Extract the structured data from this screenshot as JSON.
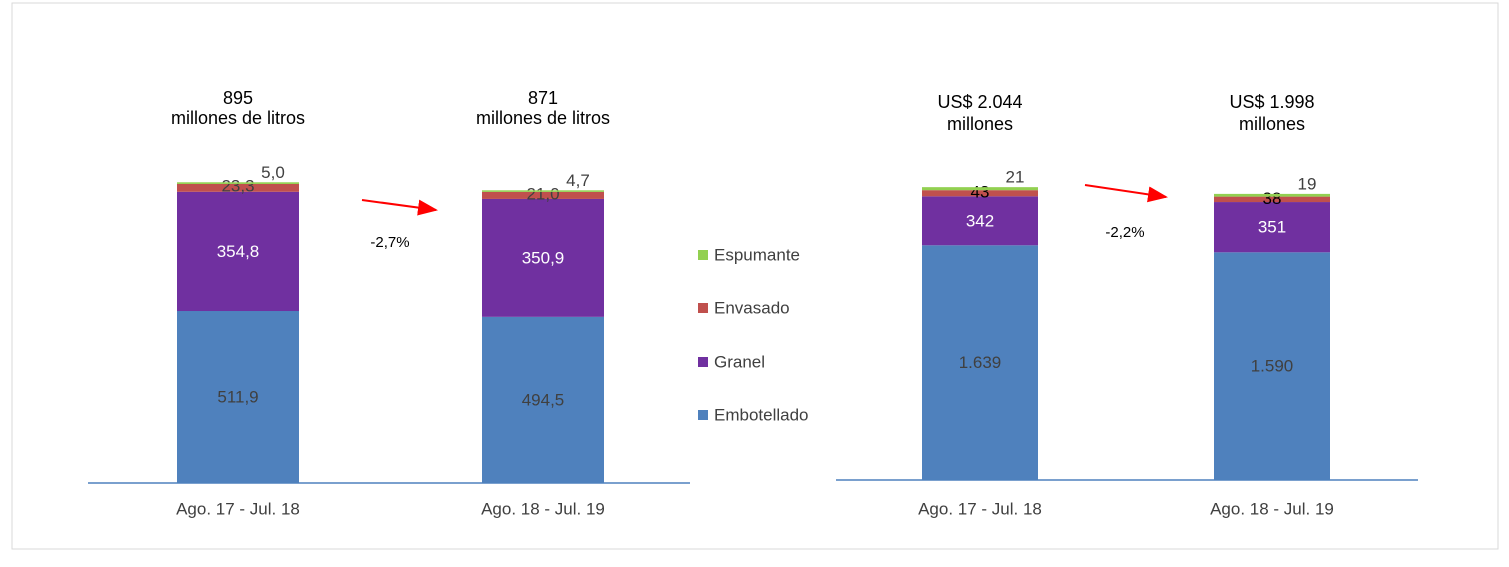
{
  "chart_data": [
    {
      "type": "stacked_bar",
      "categories": [
        "Ago. 17 - Jul. 18",
        "Ago. 18 - Jul. 19"
      ],
      "total_labels": [
        [
          "895",
          "millones de litros"
        ],
        [
          "871",
          "millones de litros"
        ]
      ],
      "change_label": "-2,7%",
      "ylim": [
        0,
        1000
      ],
      "series": [
        {
          "name": "Embotellado",
          "color": "#4f81bd",
          "values": [
            511.9,
            494.5
          ],
          "value_labels": [
            "511,9",
            "494,5"
          ]
        },
        {
          "name": "Granel",
          "color": "#7030a0",
          "values": [
            354.8,
            350.9
          ],
          "value_labels": [
            "354,8",
            "350,9"
          ]
        },
        {
          "name": "Envasado",
          "color": "#c0504d",
          "values": [
            23.3,
            21.0
          ],
          "value_labels": [
            "23,3",
            "21,0"
          ]
        },
        {
          "name": "Espumante",
          "color": "#92d050",
          "values": [
            5.0,
            4.7
          ],
          "value_labels": [
            "5,0",
            "4,7"
          ]
        }
      ]
    },
    {
      "type": "stacked_bar",
      "categories": [
        "Ago. 17 - Jul. 18",
        "Ago. 18 - Jul. 19"
      ],
      "total_labels": [
        [
          "US$ 2.044",
          "millones"
        ],
        [
          "US$ 1.998",
          "millones"
        ]
      ],
      "change_label": "-2,2%",
      "ylim": [
        0,
        2500
      ],
      "series": [
        {
          "name": "Embotellado",
          "color": "#4f81bd",
          "values": [
            1639,
            1590
          ],
          "value_labels": [
            "1.639",
            "1.590"
          ]
        },
        {
          "name": "Granel",
          "color": "#7030a0",
          "values": [
            342,
            351
          ]
        },
        {
          "name": "Envasado",
          "color": "#c0504d",
          "values": [
            43,
            38
          ]
        },
        {
          "name": "Espumante",
          "color": "#92d050",
          "values": [
            21,
            19
          ]
        }
      ]
    }
  ]
}
